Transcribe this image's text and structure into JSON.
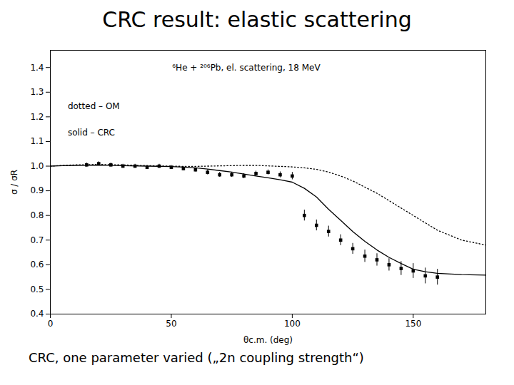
{
  "chart_data": {
    "type": "line",
    "title": "CRC result:  elastic scattering",
    "subtitle": "CRC, one parameter varied („2n coupling strength“)",
    "xlabel": "θc.m. (deg)",
    "ylabel": "σ / σR",
    "annotations": [
      "⁶He + ²⁰⁶Pb, el. scattering, 18 MeV",
      "dotted – OM",
      "solid – CRC"
    ],
    "xlim": [
      0,
      180
    ],
    "ylim": [
      0.4,
      1.47
    ],
    "xticks": [
      0,
      50,
      100,
      150
    ],
    "yticks": [
      0.4,
      0.5,
      0.6,
      0.7,
      0.8,
      0.9,
      {
        "value": 1.0,
        "label": "1.0"
      },
      1.1,
      1.2,
      1.3,
      1.4
    ],
    "series": [
      {
        "type": "line",
        "line_style": "solid",
        "x": [
          0,
          5,
          10,
          20,
          30,
          40,
          50,
          55,
          60,
          65,
          70,
          75,
          80,
          85,
          90,
          95,
          100,
          105,
          110,
          115,
          120,
          125,
          130,
          135,
          140,
          145,
          150,
          155,
          160,
          170,
          180
        ],
        "values": [
          1.0,
          1.002,
          1.003,
          1.004,
          1.002,
          1.0,
          0.998,
          0.996,
          0.993,
          0.988,
          0.982,
          0.976,
          0.968,
          0.96,
          0.953,
          0.945,
          0.935,
          0.91,
          0.875,
          0.825,
          0.78,
          0.735,
          0.695,
          0.66,
          0.63,
          0.605,
          0.582,
          0.572,
          0.565,
          0.56,
          0.558
        ]
      },
      {
        "type": "line",
        "line_style": "dotted",
        "x": [
          0,
          5,
          10,
          20,
          30,
          40,
          50,
          55,
          60,
          65,
          70,
          75,
          80,
          85,
          90,
          95,
          100,
          105,
          110,
          115,
          120,
          125,
          130,
          135,
          140,
          145,
          150,
          155,
          160,
          170,
          180
        ],
        "values": [
          1.0,
          1.003,
          1.005,
          1.007,
          1.005,
          1.002,
          1.0,
          0.999,
          0.999,
          1.0,
          1.001,
          1.002,
          1.003,
          1.003,
          1.001,
          0.999,
          0.997,
          0.993,
          0.987,
          0.976,
          0.96,
          0.94,
          0.915,
          0.89,
          0.86,
          0.83,
          0.8,
          0.77,
          0.74,
          0.7,
          0.68
        ]
      },
      {
        "type": "scatter",
        "marker": "square",
        "x": [
          15,
          20,
          25,
          30,
          35,
          40,
          45,
          50,
          55,
          60,
          65,
          70,
          75,
          80,
          85,
          90,
          95,
          100,
          105,
          110,
          115,
          120,
          125,
          130,
          135,
          140,
          145,
          150,
          155,
          160
        ],
        "values": [
          1.005,
          1.01,
          1.005,
          1.0,
          1.0,
          0.995,
          1.0,
          0.995,
          0.99,
          0.985,
          0.975,
          0.965,
          0.965,
          0.96,
          0.97,
          0.975,
          0.965,
          0.96,
          0.8,
          0.76,
          0.735,
          0.7,
          0.665,
          0.635,
          0.62,
          0.6,
          0.585,
          0.575,
          0.555,
          0.55
        ],
        "yerr": [
          0.008,
          0.008,
          0.008,
          0.008,
          0.008,
          0.008,
          0.008,
          0.008,
          0.008,
          0.008,
          0.01,
          0.01,
          0.01,
          0.01,
          0.01,
          0.01,
          0.012,
          0.015,
          0.022,
          0.022,
          0.022,
          0.022,
          0.022,
          0.025,
          0.025,
          0.025,
          0.028,
          0.03,
          0.032,
          0.032
        ]
      }
    ]
  }
}
